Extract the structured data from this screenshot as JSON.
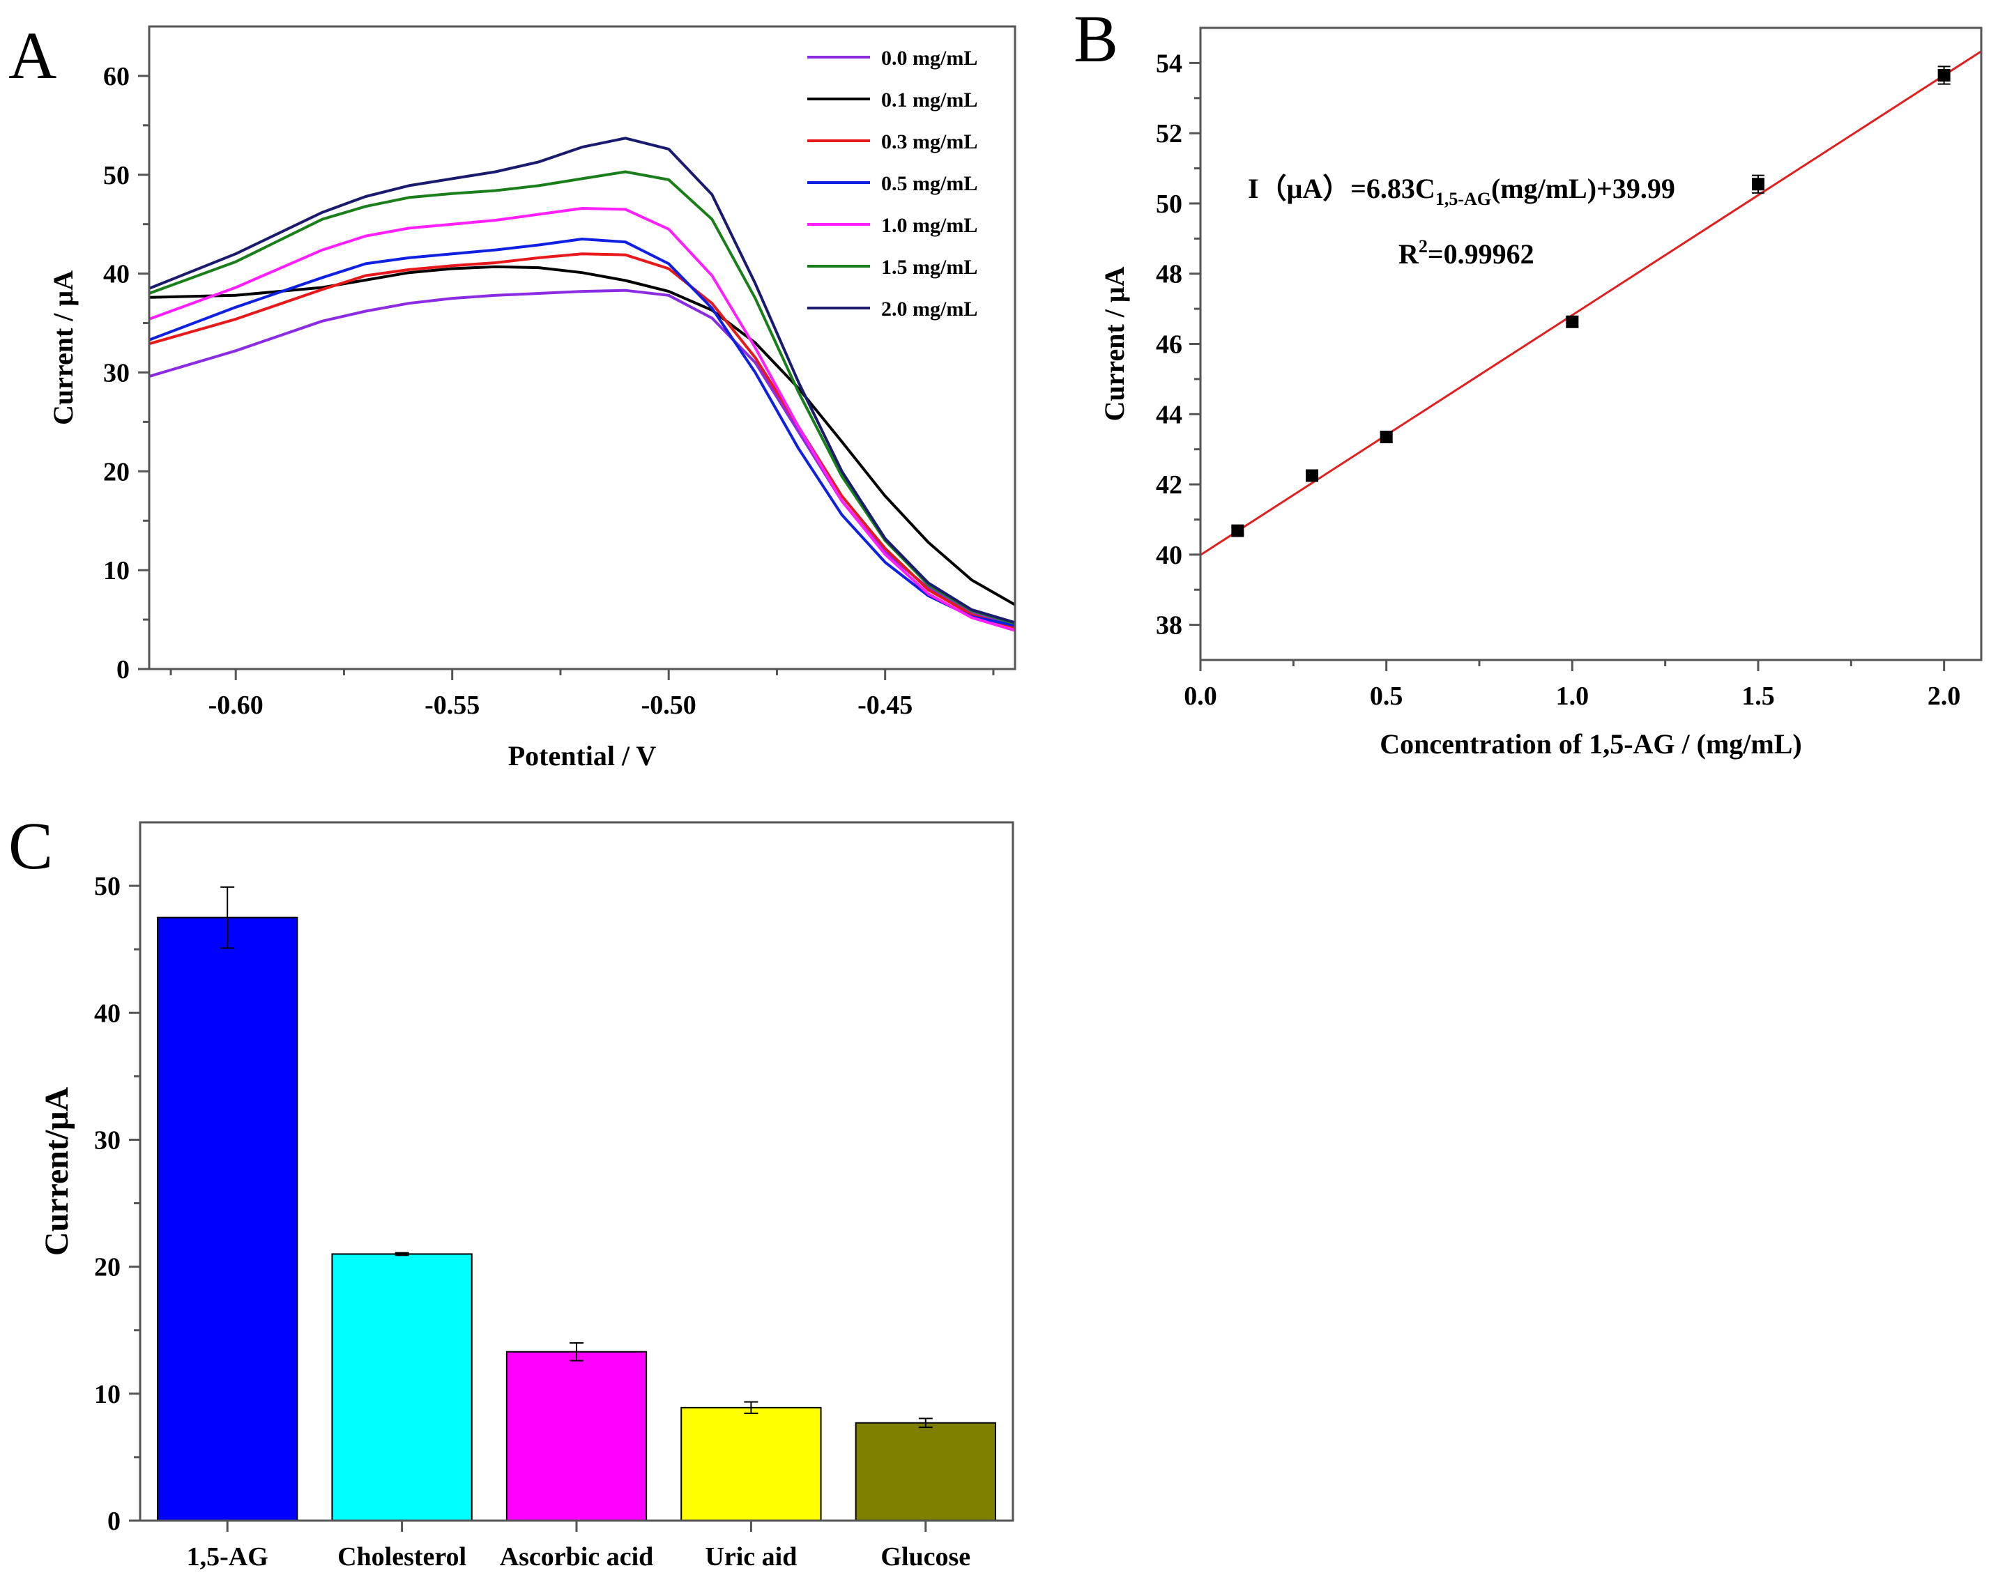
{
  "chart_data": [
    {
      "panel": "A",
      "type": "line",
      "xlabel": "Potential / V",
      "ylabel": "Current / μA",
      "xlim": [
        -0.62,
        -0.42
      ],
      "ylim": [
        0,
        65
      ],
      "xticks": [
        "-0.60",
        "-0.55",
        "-0.50",
        "-0.45"
      ],
      "xtick_values": [
        -0.6,
        -0.55,
        -0.5,
        -0.45
      ],
      "yticks": [
        "0",
        "10",
        "20",
        "30",
        "40",
        "50",
        "60"
      ],
      "ytick_values": [
        0,
        10,
        20,
        30,
        40,
        50,
        60
      ],
      "legend_position": "top-right",
      "series": [
        {
          "name": "0.0 mg/mL",
          "color": "#8b2be2",
          "points": [
            [
              -0.62,
              29.6
            ],
            [
              -0.6,
              32.2
            ],
            [
              -0.58,
              35.2
            ],
            [
              -0.57,
              36.2
            ],
            [
              -0.56,
              37.0
            ],
            [
              -0.55,
              37.5
            ],
            [
              -0.54,
              37.8
            ],
            [
              -0.53,
              38.0
            ],
            [
              -0.52,
              38.2
            ],
            [
              -0.51,
              38.3
            ],
            [
              -0.5,
              37.8
            ],
            [
              -0.49,
              35.5
            ],
            [
              -0.48,
              31.0
            ],
            [
              -0.47,
              24.0
            ],
            [
              -0.46,
              17.0
            ],
            [
              -0.45,
              11.8
            ],
            [
              -0.44,
              8.2
            ],
            [
              -0.43,
              5.8
            ],
            [
              -0.42,
              4.3
            ]
          ]
        },
        {
          "name": "0.1 mg/mL",
          "color": "#000000",
          "points": [
            [
              -0.62,
              37.6
            ],
            [
              -0.6,
              37.8
            ],
            [
              -0.58,
              38.6
            ],
            [
              -0.56,
              40.1
            ],
            [
              -0.55,
              40.5
            ],
            [
              -0.54,
              40.7
            ],
            [
              -0.53,
              40.6
            ],
            [
              -0.52,
              40.1
            ],
            [
              -0.51,
              39.3
            ],
            [
              -0.5,
              38.2
            ],
            [
              -0.49,
              36.3
            ],
            [
              -0.48,
              33.0
            ],
            [
              -0.47,
              28.4
            ],
            [
              -0.46,
              23.0
            ],
            [
              -0.45,
              17.5
            ],
            [
              -0.44,
              12.8
            ],
            [
              -0.43,
              9.0
            ],
            [
              -0.42,
              6.5
            ]
          ]
        },
        {
          "name": "0.3 mg/mL",
          "color": "#e8191a",
          "points": [
            [
              -0.62,
              32.9
            ],
            [
              -0.6,
              35.4
            ],
            [
              -0.58,
              38.4
            ],
            [
              -0.57,
              39.8
            ],
            [
              -0.56,
              40.4
            ],
            [
              -0.55,
              40.8
            ],
            [
              -0.54,
              41.1
            ],
            [
              -0.53,
              41.6
            ],
            [
              -0.52,
              42.0
            ],
            [
              -0.51,
              41.9
            ],
            [
              -0.5,
              40.5
            ],
            [
              -0.49,
              37.0
            ],
            [
              -0.48,
              31.5
            ],
            [
              -0.47,
              24.5
            ],
            [
              -0.46,
              17.5
            ],
            [
              -0.45,
              12.2
            ],
            [
              -0.44,
              8.0
            ],
            [
              -0.43,
              5.5
            ],
            [
              -0.42,
              4.2
            ]
          ]
        },
        {
          "name": "0.5 mg/mL",
          "color": "#1020e0",
          "points": [
            [
              -0.62,
              33.3
            ],
            [
              -0.6,
              36.6
            ],
            [
              -0.58,
              39.6
            ],
            [
              -0.57,
              41.0
            ],
            [
              -0.56,
              41.6
            ],
            [
              -0.55,
              42.0
            ],
            [
              -0.54,
              42.4
            ],
            [
              -0.53,
              42.9
            ],
            [
              -0.52,
              43.5
            ],
            [
              -0.51,
              43.2
            ],
            [
              -0.5,
              41.0
            ],
            [
              -0.49,
              36.5
            ],
            [
              -0.48,
              30.0
            ],
            [
              -0.47,
              22.3
            ],
            [
              -0.46,
              15.6
            ],
            [
              -0.45,
              10.8
            ],
            [
              -0.44,
              7.4
            ],
            [
              -0.43,
              5.3
            ],
            [
              -0.42,
              4.4
            ]
          ]
        },
        {
          "name": "1.0 mg/mL",
          "color": "#ff1fff",
          "points": [
            [
              -0.62,
              35.4
            ],
            [
              -0.6,
              38.6
            ],
            [
              -0.58,
              42.4
            ],
            [
              -0.57,
              43.8
            ],
            [
              -0.56,
              44.6
            ],
            [
              -0.55,
              45.0
            ],
            [
              -0.54,
              45.4
            ],
            [
              -0.53,
              46.0
            ],
            [
              -0.52,
              46.6
            ],
            [
              -0.51,
              46.5
            ],
            [
              -0.5,
              44.5
            ],
            [
              -0.49,
              39.8
            ],
            [
              -0.48,
              32.5
            ],
            [
              -0.47,
              24.5
            ],
            [
              -0.46,
              17.0
            ],
            [
              -0.45,
              11.6
            ],
            [
              -0.44,
              7.6
            ],
            [
              -0.43,
              5.2
            ],
            [
              -0.42,
              3.9
            ]
          ]
        },
        {
          "name": "1.5 mg/mL",
          "color": "#1a7f1a",
          "points": [
            [
              -0.62,
              38.0
            ],
            [
              -0.6,
              41.2
            ],
            [
              -0.58,
              45.5
            ],
            [
              -0.57,
              46.8
            ],
            [
              -0.56,
              47.7
            ],
            [
              -0.55,
              48.1
            ],
            [
              -0.54,
              48.4
            ],
            [
              -0.53,
              48.9
            ],
            [
              -0.52,
              49.6
            ],
            [
              -0.51,
              50.3
            ],
            [
              -0.5,
              49.5
            ],
            [
              -0.49,
              45.5
            ],
            [
              -0.48,
              37.5
            ],
            [
              -0.47,
              28.0
            ],
            [
              -0.46,
              19.5
            ],
            [
              -0.45,
              13.0
            ],
            [
              -0.44,
              8.5
            ],
            [
              -0.43,
              5.9
            ],
            [
              -0.42,
              4.6
            ]
          ]
        },
        {
          "name": "2.0 mg/mL",
          "color": "#1a1a6e",
          "points": [
            [
              -0.62,
              38.5
            ],
            [
              -0.6,
              42.0
            ],
            [
              -0.58,
              46.2
            ],
            [
              -0.57,
              47.8
            ],
            [
              -0.56,
              48.9
            ],
            [
              -0.55,
              49.6
            ],
            [
              -0.54,
              50.3
            ],
            [
              -0.53,
              51.3
            ],
            [
              -0.52,
              52.8
            ],
            [
              -0.51,
              53.7
            ],
            [
              -0.5,
              52.6
            ],
            [
              -0.49,
              48.0
            ],
            [
              -0.48,
              39.0
            ],
            [
              -0.47,
              29.0
            ],
            [
              -0.46,
              20.0
            ],
            [
              -0.45,
              13.2
            ],
            [
              -0.44,
              8.7
            ],
            [
              -0.43,
              6.0
            ],
            [
              -0.42,
              4.7
            ]
          ]
        }
      ]
    },
    {
      "panel": "B",
      "type": "scatter",
      "xlabel": "Concentration of 1,5-AG / (mg/mL)",
      "ylabel": "Current / μA",
      "xlim": [
        0.0,
        2.1
      ],
      "ylim": [
        37,
        55
      ],
      "xticks": [
        "0.0",
        "0.5",
        "1.0",
        "1.5",
        "2.0"
      ],
      "xtick_values": [
        0.0,
        0.5,
        1.0,
        1.5,
        2.0
      ],
      "yticks": [
        "38",
        "40",
        "42",
        "44",
        "46",
        "48",
        "50",
        "52",
        "54"
      ],
      "ytick_values": [
        38,
        40,
        42,
        44,
        46,
        48,
        50,
        52,
        54
      ],
      "x": [
        0.1,
        0.3,
        0.5,
        1.0,
        1.5,
        2.0
      ],
      "y": [
        40.68,
        42.25,
        43.35,
        46.63,
        50.55,
        53.65
      ],
      "yerr": [
        0.1,
        0.15,
        0.15,
        0.15,
        0.25,
        0.25
      ],
      "fit": {
        "slope": 6.83,
        "intercept": 39.99,
        "color": "#e02020"
      },
      "equation": {
        "prefix": "I（μA）=6.83C",
        "subscript": "1,5-AG",
        "suffix": "(mg/mL)+39.99"
      },
      "r_squared": {
        "prefix": "R",
        "superscript": "2",
        "value": "=0.99962"
      }
    },
    {
      "panel": "C",
      "type": "bar",
      "xlabel": "",
      "ylabel": "Current/μA",
      "ylim": [
        0,
        55
      ],
      "yticks": [
        "0",
        "10",
        "20",
        "30",
        "40",
        "50"
      ],
      "ytick_values": [
        0,
        10,
        20,
        30,
        40,
        50
      ],
      "categories": [
        "1,5-AG",
        "Cholesterol",
        "Ascorbic acid",
        "Uric aid",
        "Glucose"
      ],
      "values": [
        47.5,
        21.0,
        13.3,
        8.9,
        7.7
      ],
      "errors": [
        2.4,
        0.1,
        0.7,
        0.45,
        0.35
      ],
      "colors": [
        "#0000ff",
        "#00ffff",
        "#ff00ff",
        "#ffff00",
        "#808000"
      ]
    }
  ]
}
